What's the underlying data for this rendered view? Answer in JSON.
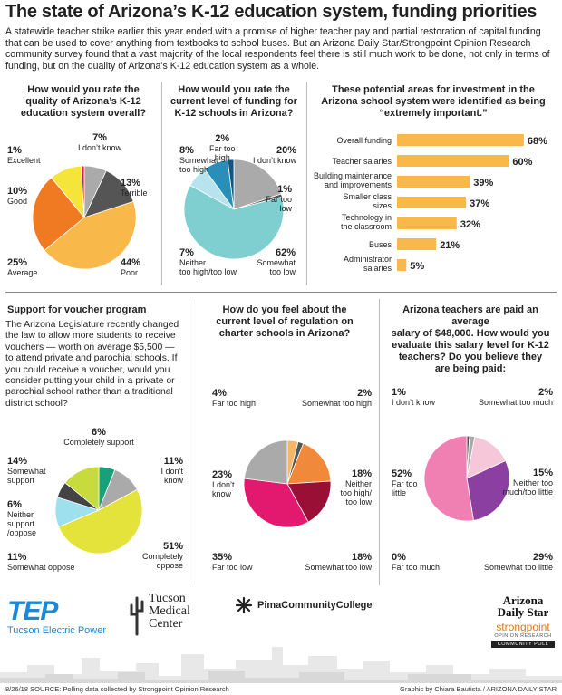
{
  "header": {
    "title": "The state of Arizona’s K-12 education system, funding priorities",
    "intro": "A statewide teacher strike earlier this year ended with a promise of higher teacher pay and partial restoration of capital funding that can be used to cover anything from textbooks to school buses. But an Arizona Daily Star/Strongpoint Opinion Research community survey found that a vast majority of the local respondents feel there is still much work to be done, not only in terms of funding, but on the quality of Arizona’s K-12 education system as a whole."
  },
  "q1": {
    "title_l1": "How would you rate the",
    "title_l2": "quality of Arizona’s K-12",
    "title_l3": "education system overall?"
  },
  "q2": {
    "title_l1": "How would you rate the",
    "title_l2": "current level of funding for",
    "title_l3": "K-12 schools in Arizona?"
  },
  "q3": {
    "title_l1": "These potential areas for investment in the",
    "title_l2": "Arizona school system were identified as being",
    "title_l3": "“extremely important.”"
  },
  "q4": {
    "title": "Support for voucher program",
    "text": "The Arizona Legislature recently changed the law to allow more students to receive vouchers — worth on average $5,500 — to attend private and parochial schools. If you could receive a voucher, would you consider putting your child in a private or parochial school rather than a traditional district school?"
  },
  "q5": {
    "title_l1": "How do you feel about the",
    "title_l2": "current level of regulation on",
    "title_l3": "charter schools in Arizona?"
  },
  "q6": {
    "title_l1": "Arizona teachers are paid an average",
    "title_l2": "salary of $48,000. How would you",
    "title_l3": "evaluate this salary level for K-12",
    "title_l4": "teachers? Do you believe they",
    "title_l5": "are being paid:"
  },
  "chart_data": [
    {
      "type": "pie",
      "id": "quality",
      "slices": [
        {
          "label": "I don’t know",
          "value": 7,
          "color": "#aaaaaa"
        },
        {
          "label": "Terrible",
          "value": 13,
          "color": "#555555"
        },
        {
          "label": "Poor",
          "value": 44,
          "color": "#f9b84a"
        },
        {
          "label": "Average",
          "value": 25,
          "color": "#f07a22"
        },
        {
          "label": "Good",
          "value": 10,
          "color": "#f5e53a"
        },
        {
          "label": "Excellent",
          "value": 1,
          "color": "#d8262b"
        }
      ]
    },
    {
      "type": "pie",
      "id": "funding",
      "slices": [
        {
          "label": "I don’t know",
          "value": 20,
          "color": "#aaaaaa"
        },
        {
          "label": "Far too low",
          "value": 1,
          "color": "#555555"
        },
        {
          "label": "Somewhat too low",
          "value": 62,
          "color": "#7fcfd0"
        },
        {
          "label": "Neither too high/too low",
          "value": 7,
          "color": "#b7e3ee"
        },
        {
          "label": "Somewhat too high",
          "value": 8,
          "color": "#2a8fb8"
        },
        {
          "label": "Far too high",
          "value": 2,
          "color": "#17557c"
        }
      ]
    },
    {
      "type": "bar",
      "id": "investment",
      "orientation": "horizontal",
      "categories": [
        "Overall funding",
        "Teacher salaries",
        "Building maintenance and improvements",
        "Smaller class sizes",
        "Technology in the classroom",
        "Buses",
        "Administrator salaries"
      ],
      "values": [
        68,
        60,
        39,
        37,
        32,
        21,
        5
      ],
      "value_labels": [
        "68%",
        "60%",
        "39%",
        "37%",
        "32%",
        "21%",
        "5%"
      ],
      "color": "#f9b84a",
      "xlim": [
        0,
        70
      ]
    },
    {
      "type": "pie",
      "id": "voucher",
      "slices": [
        {
          "label": "Completely support",
          "value": 6,
          "color": "#17a07a"
        },
        {
          "label": "I don’t know",
          "value": 11,
          "color": "#aaaaaa"
        },
        {
          "label": "Completely oppose",
          "value": 51,
          "color": "#e4e33c"
        },
        {
          "label": "Somewhat oppose",
          "value": 11,
          "color": "#9fe0ee"
        },
        {
          "label": "Neither support/oppose",
          "value": 6,
          "color": "#444444"
        },
        {
          "label": "Somewhat support",
          "value": 14,
          "color": "#c7dc3c"
        }
      ]
    },
    {
      "type": "pie",
      "id": "charter",
      "slices": [
        {
          "label": "Far too high",
          "value": 4,
          "color": "#f6b66a"
        },
        {
          "label": "Somewhat too high",
          "value": 2,
          "color": "#555555"
        },
        {
          "label": "Neither too high/too low",
          "value": 18,
          "color": "#f08a3a"
        },
        {
          "label": "Somewhat too low",
          "value": 18,
          "color": "#9a0f35"
        },
        {
          "label": "Far too low",
          "value": 35,
          "color": "#e2196e"
        },
        {
          "label": "I don’t know",
          "value": 23,
          "color": "#aaaaaa"
        }
      ]
    },
    {
      "type": "pie",
      "id": "salary",
      "slices": [
        {
          "label": "I don’t know",
          "value": 1,
          "color": "#555555"
        },
        {
          "label": "Somewhat too much",
          "value": 2,
          "color": "#aaaaaa"
        },
        {
          "label": "Neither too much/too little",
          "value": 15,
          "color": "#f6c7d8"
        },
        {
          "label": "Somewhat too little",
          "value": 29,
          "color": "#8b3fa0"
        },
        {
          "label": "Far too much",
          "value": 0,
          "color": "#c21f7a"
        },
        {
          "label": "Far too little",
          "value": 52,
          "color": "#f07fb2"
        }
      ]
    }
  ],
  "labels": {
    "quality": {
      "dk": {
        "p": "7%",
        "t": "I don’t know"
      },
      "terrible": {
        "p": "13%",
        "t": "Terrible"
      },
      "poor": {
        "p": "44%",
        "t": "Poor"
      },
      "average": {
        "p": "25%",
        "t": "Average"
      },
      "good": {
        "p": "10%",
        "t": "Good"
      },
      "excellent": {
        "p": "1%",
        "t": "Excellent"
      }
    },
    "funding": {
      "fth": {
        "p": "2%",
        "t1": "Far too",
        "t2": "high"
      },
      "dk": {
        "p": "20%",
        "t": "I don’t know"
      },
      "sth": {
        "p": "8%",
        "t1": "Somewhat",
        "t2": "too high"
      },
      "ftl": {
        "p": "1%",
        "t1": "Far too",
        "t2": "low"
      },
      "neither": {
        "p": "7%",
        "t1": "Neither",
        "t2": "too high/too low"
      },
      "stl": {
        "p": "62%",
        "t1": "Somewhat",
        "t2": "too low"
      }
    },
    "voucher": {
      "cs": {
        "p": "6%",
        "t": "Completely support"
      },
      "ss": {
        "p": "14%",
        "t1": "Somewhat",
        "t2": "support"
      },
      "dk": {
        "p": "11%",
        "t1": "I don’t",
        "t2": "know"
      },
      "neither": {
        "p": "6%",
        "t1": "Neither",
        "t2": "support",
        "t3": "/oppose"
      },
      "so": {
        "p": "11%",
        "t": "Somewhat oppose"
      },
      "co": {
        "p": "51%",
        "t1": "Completely",
        "t2": "oppose"
      }
    },
    "charter": {
      "fth": {
        "p": "4%",
        "t": "Far too high"
      },
      "sth": {
        "p": "2%",
        "t": "Somewhat too high"
      },
      "dk": {
        "p": "23%",
        "t1": "I don’t",
        "t2": "know"
      },
      "neither": {
        "p": "18%",
        "t1": "Neither",
        "t2": "too high/",
        "t3": "too low"
      },
      "ftl": {
        "p": "35%",
        "t": "Far too low"
      },
      "stl": {
        "p": "18%",
        "t": "Somewhat too low"
      }
    },
    "salary": {
      "dk": {
        "p": "1%",
        "t": "I don’t know"
      },
      "stm": {
        "p": "2%",
        "t": "Somewhat too much"
      },
      "ftl": {
        "p": "52%",
        "t1": "Far too",
        "t2": "little"
      },
      "neither": {
        "p": "15%",
        "t1": "Neither too",
        "t2": "much/too little"
      },
      "ftm": {
        "p": "0%",
        "t": "Far too much"
      },
      "stl": {
        "p": "29%",
        "t": "Somewhat too little"
      }
    }
  },
  "sponsors": {
    "tep": "TEP",
    "tep_name": "Tucson Electric Power",
    "tmc_l1": "Tucson",
    "tmc_l2": "Medical",
    "tmc_l3": "Center",
    "pima": "PimaCommunityCollege",
    "ads_l1": "Arizona",
    "ads_l2": "Daily Star",
    "sp": "strongpoint",
    "sp_sub": "OPINION RESEARCH",
    "sp_poll": "COMMUNITY POLL"
  },
  "footer": {
    "left": "8/26/18  SOURCE: Polling data collected by Strongpoint Opinion Research",
    "right": "Graphic by Chiara Bautista / ARIZONA DAILY STAR"
  }
}
